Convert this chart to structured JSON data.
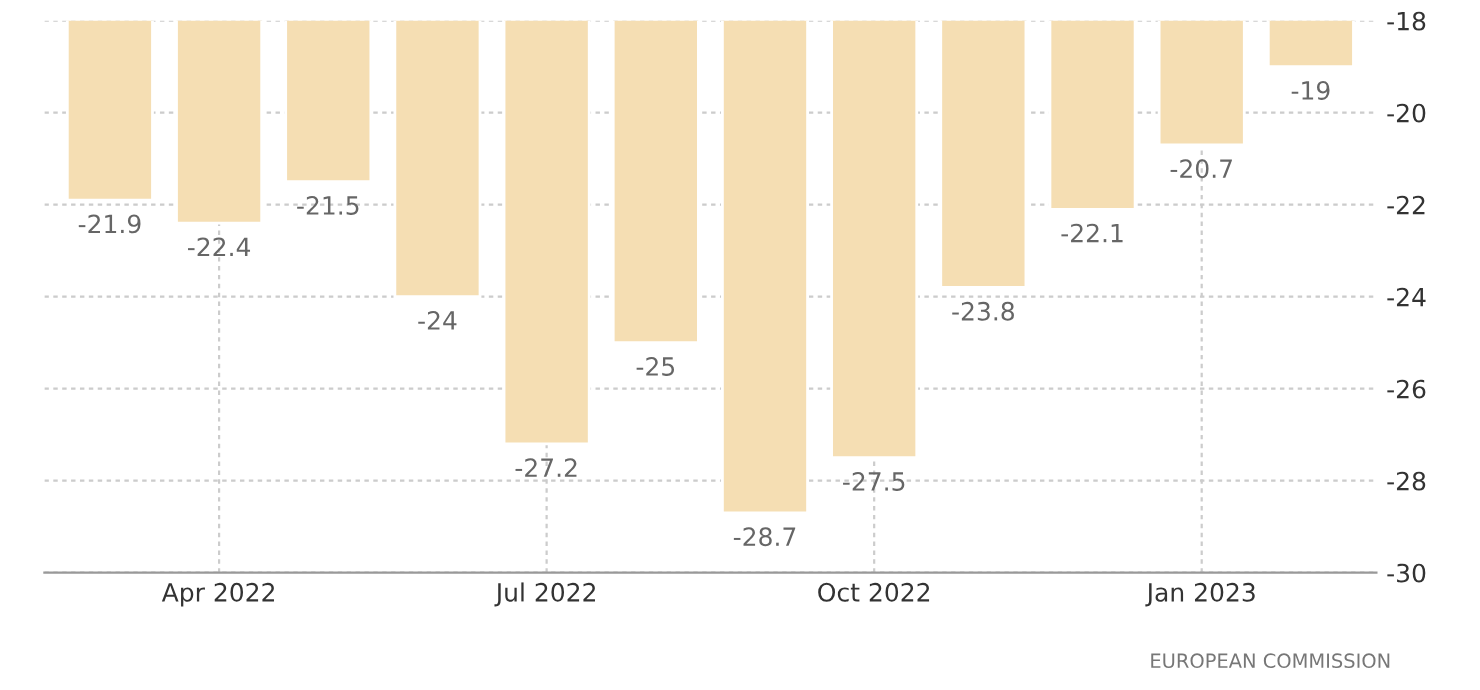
{
  "chart_data": {
    "type": "bar",
    "categories": [
      null,
      "Apr 2022",
      null,
      null,
      "Jul 2022",
      null,
      null,
      "Oct 2022",
      null,
      null,
      "Jan 2023",
      null
    ],
    "values": [
      -21.9,
      -22.4,
      -21.5,
      -24,
      -27.2,
      -25,
      -28.7,
      -27.5,
      -23.8,
      -22.1,
      -20.7,
      -19
    ],
    "color": "#f5deb3",
    "ylim": [
      -30,
      -18
    ],
    "yticks": [
      -30,
      -28,
      -26,
      -24,
      -22,
      -20,
      -18
    ],
    "grid": true,
    "data_labels": true,
    "annotations": [
      "EUROPEAN COMMISSION"
    ]
  }
}
